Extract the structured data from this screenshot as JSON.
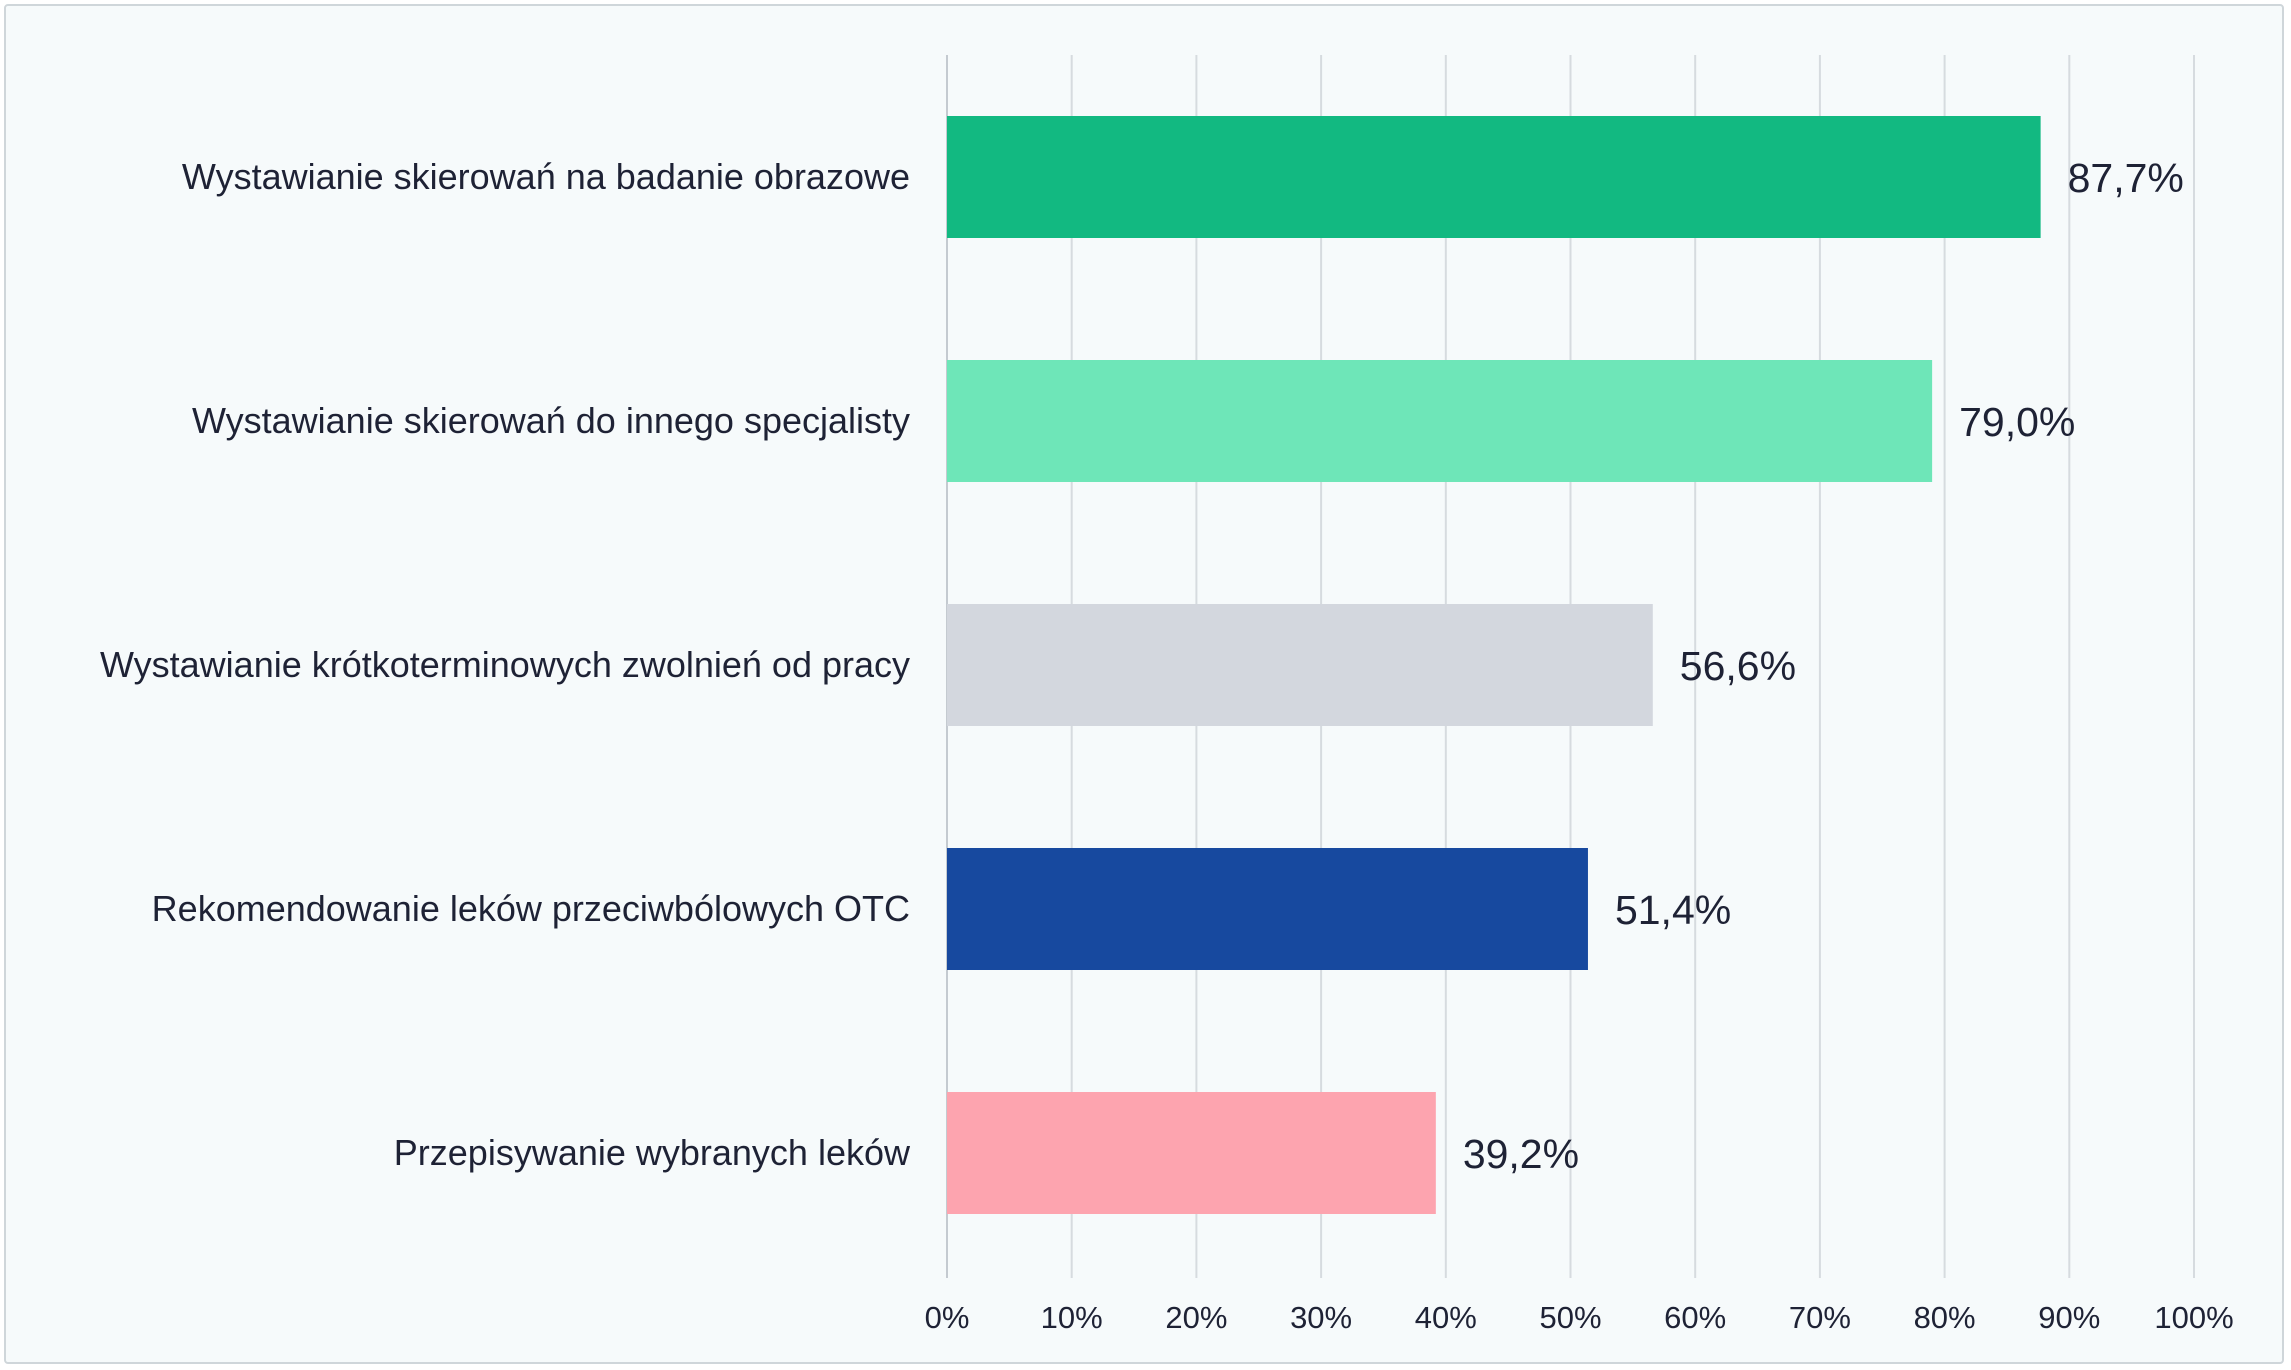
{
  "chart_data": {
    "type": "bar",
    "orientation": "horizontal",
    "title": "",
    "xlabel": "",
    "ylabel": "",
    "categories": [
      "Wystawianie skierowań na badanie obrazowe",
      "Wystawianie skierowań do innego specjalisty",
      "Wystawianie krótkoterminowych zwolnień od pracy",
      "Rekomendowanie leków przeciwbólowych OTC",
      "Przepisywanie wybranych leków"
    ],
    "values": [
      87.7,
      79.0,
      56.6,
      51.4,
      39.2
    ],
    "value_labels": [
      "87,7%",
      "79,0%",
      "56,6%",
      "51,4%",
      "39,2%"
    ],
    "colors": [
      "#12b981",
      "#6ee6b8",
      "#d3d7de",
      "#17499f",
      "#fda4af"
    ],
    "xlim": [
      0,
      100
    ],
    "x_ticks": [
      0,
      10,
      20,
      30,
      40,
      50,
      60,
      70,
      80,
      90,
      100
    ],
    "x_tick_labels": [
      "0%",
      "10%",
      "20%",
      "30%",
      "40%",
      "50%",
      "60%",
      "70%",
      "80%",
      "90%",
      "100%"
    ],
    "grid": "vertical",
    "legend": "none"
  }
}
